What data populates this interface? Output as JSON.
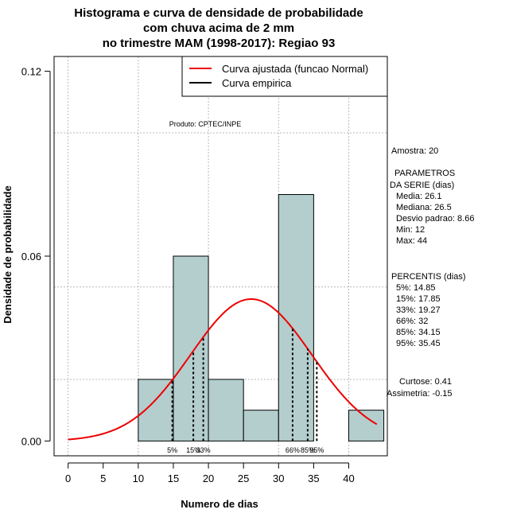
{
  "chart_data": {
    "type": "histogram",
    "title_lines": [
      "Histograma e curva de densidade de probabilidade",
      "com chuva acima de 2 mm",
      "no trimestre MAM (1998-2017): Regiao 93"
    ],
    "xlabel": "Numero de dias",
    "ylabel": "Densidade de probabilidade",
    "xlim": [
      -2,
      45.5
    ],
    "ylim": [
      -0.0048,
      0.1248
    ],
    "x_ticks": [
      0,
      5,
      10,
      15,
      20,
      25,
      30,
      35,
      40
    ],
    "y_ticks": [
      0.0,
      0.06,
      0.12
    ],
    "y_tick_labels": [
      "0.00",
      "0.06",
      "0.12"
    ],
    "grid_x": [
      0,
      10,
      20,
      30,
      40
    ],
    "grid_y": [
      0.02,
      0.05,
      0.1
    ],
    "bins": [
      {
        "x0": 10,
        "x1": 15,
        "density": 0.02
      },
      {
        "x0": 15,
        "x1": 20,
        "density": 0.06
      },
      {
        "x0": 20,
        "x1": 25,
        "density": 0.02
      },
      {
        "x0": 25,
        "x1": 30,
        "density": 0.01
      },
      {
        "x0": 30,
        "x1": 35,
        "density": 0.08
      },
      {
        "x0": 35,
        "x1": 40,
        "density": 0.0
      },
      {
        "x0": 40,
        "x1": 45,
        "density": 0.01
      }
    ],
    "normal_curve": {
      "mean": 26.1,
      "sd": 8.66,
      "x_from": 0,
      "x_to": 44
    },
    "percentile_lines": [
      {
        "x": 14.85,
        "label": "5%"
      },
      {
        "x": 17.85,
        "label": "15%"
      },
      {
        "x": 19.27,
        "label": "33%"
      },
      {
        "x": 32,
        "label": "66%"
      },
      {
        "x": 34.15,
        "label": "85%"
      },
      {
        "x": 35.45,
        "label": "95%"
      }
    ],
    "legend": [
      {
        "label": "Curva ajustada (funcao Normal)",
        "color": "#ee0000"
      },
      {
        "label": "Curva empirica",
        "color": "#000000"
      }
    ],
    "product_label": "Produto: CPTEC/INPE",
    "bar_color": "#b4cece",
    "curve_color": "#ee0000"
  },
  "stats_panel": {
    "amostra": "Amostra: 20",
    "parametros_lines": [
      "PARAMETROS",
      "DA SERIE (dias)",
      "Media: 26.1",
      "Mediana: 26.5",
      "Desvio padrao: 8.66",
      "Min: 12",
      "Max: 44"
    ],
    "percentis_lines": [
      "PERCENTIS (dias)",
      "5%: 14.85",
      "15%: 17.85",
      "33%: 19.27",
      "66%: 32",
      "85%: 34.15",
      "95%: 35.45"
    ],
    "curtose": "Curtose: 0.41",
    "assimetria": "Assimetria: -0.15"
  }
}
